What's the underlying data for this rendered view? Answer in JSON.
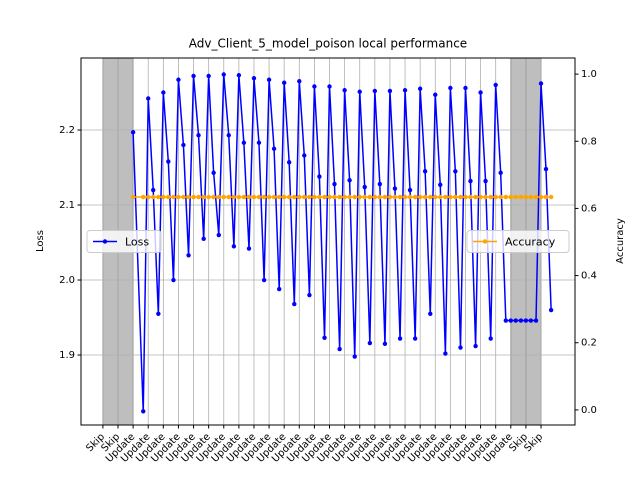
{
  "chart_data": {
    "type": "line",
    "title": "Adv_Client_5_model_poison local performance",
    "y_label": "Loss",
    "y2_label": "Accuracy",
    "categories": [
      "Skip",
      "Skip",
      "Update",
      "Update",
      "Update",
      "Update",
      "Update",
      "Update",
      "Update",
      "Update",
      "Update",
      "Update",
      "Update",
      "Update",
      "Update",
      "Update",
      "Update",
      "Update",
      "Update",
      "Update",
      "Update",
      "Update",
      "Update",
      "Update",
      "Update",
      "Update",
      "Update",
      "Update",
      "Skip",
      "Skip"
    ],
    "shaded_spans": [
      [
        0,
        1
      ],
      [
        1,
        2
      ],
      [
        27,
        28
      ],
      [
        28,
        29
      ]
    ],
    "shade_color": "#bebebe",
    "x": [
      2,
      2.67,
      3,
      3.33,
      3.67,
      4,
      4.33,
      4.67,
      5,
      5.33,
      5.67,
      6,
      6.33,
      6.67,
      7,
      7.33,
      7.67,
      8,
      8.33,
      8.67,
      9,
      9.33,
      9.67,
      10,
      10.33,
      10.67,
      11,
      11.33,
      11.67,
      12,
      12.33,
      12.67,
      13,
      13.33,
      13.67,
      14,
      14.33,
      14.67,
      15,
      15.33,
      15.67,
      16,
      16.33,
      16.67,
      17,
      17.33,
      17.67,
      18,
      18.33,
      18.67,
      19,
      19.33,
      19.67,
      20,
      20.33,
      20.67,
      21,
      21.33,
      21.67,
      22,
      22.33,
      22.67,
      23,
      23.33,
      23.67,
      24,
      24.33,
      24.67,
      25,
      25.33,
      25.67,
      26,
      26.33,
      26.67,
      27,
      27.33,
      27.67,
      28,
      28.33,
      28.67,
      29,
      29.33,
      29.67
    ],
    "series": [
      {
        "name": "Loss",
        "color": "#0000ff",
        "axis": "y",
        "values": [
          2.197,
          1.825,
          2.242,
          2.12,
          1.955,
          2.25,
          2.158,
          2.0,
          2.267,
          2.18,
          2.033,
          2.272,
          2.193,
          2.055,
          2.272,
          2.143,
          2.06,
          2.274,
          2.193,
          2.045,
          2.273,
          2.183,
          2.042,
          2.269,
          2.183,
          2.0,
          2.267,
          2.175,
          1.988,
          2.263,
          2.157,
          1.968,
          2.265,
          2.166,
          1.98,
          2.258,
          2.138,
          1.923,
          2.258,
          2.128,
          1.908,
          2.253,
          2.133,
          1.898,
          2.251,
          2.124,
          1.916,
          2.252,
          2.128,
          1.915,
          2.252,
          2.122,
          1.922,
          2.253,
          2.12,
          1.922,
          2.255,
          2.145,
          1.955,
          2.247,
          2.127,
          1.902,
          2.256,
          2.145,
          1.91,
          2.256,
          2.132,
          1.912,
          2.25,
          2.132,
          1.922,
          2.26,
          2.143,
          1.946,
          1.946,
          1.946,
          1.946,
          1.946,
          1.946,
          1.946,
          2.262,
          2.148,
          1.96
        ]
      },
      {
        "name": "Accuracy",
        "color": "#ffa500",
        "axis": "y2",
        "values": [
          0.634,
          0.634,
          0.634,
          0.634,
          0.634,
          0.634,
          0.634,
          0.634,
          0.634,
          0.634,
          0.634,
          0.634,
          0.634,
          0.634,
          0.634,
          0.634,
          0.634,
          0.634,
          0.634,
          0.634,
          0.634,
          0.634,
          0.634,
          0.634,
          0.634,
          0.634,
          0.634,
          0.634,
          0.634,
          0.634,
          0.634,
          0.634,
          0.634,
          0.634,
          0.634,
          0.634,
          0.634,
          0.634,
          0.634,
          0.634,
          0.634,
          0.634,
          0.634,
          0.634,
          0.634,
          0.634,
          0.634,
          0.634,
          0.634,
          0.634,
          0.634,
          0.634,
          0.634,
          0.634,
          0.634,
          0.634,
          0.634,
          0.634,
          0.634,
          0.634,
          0.634,
          0.634,
          0.634,
          0.634,
          0.634,
          0.634,
          0.634,
          0.634,
          0.634,
          0.634,
          0.634,
          0.634,
          0.634,
          0.634,
          0.634,
          0.634,
          0.634,
          0.634,
          0.634,
          0.634,
          0.634,
          0.634,
          0.634
        ]
      }
    ],
    "xlim": [
      -1.45,
      31.25
    ],
    "ylim": [
      1.8067,
      2.296
    ],
    "yticks": [
      1.9,
      {
        "value": 2.0,
        "label": "2.0"
      },
      2.1,
      2.2
    ],
    "y2lim": [
      -0.045,
      1.048
    ],
    "y2ticks": [
      {
        "value": 0,
        "label": "0.0"
      },
      0.2,
      0.4,
      0.6,
      0.8,
      {
        "value": 1,
        "label": "1.0"
      }
    ],
    "grid": true,
    "legend_loc": [
      "center left",
      "center right"
    ]
  }
}
